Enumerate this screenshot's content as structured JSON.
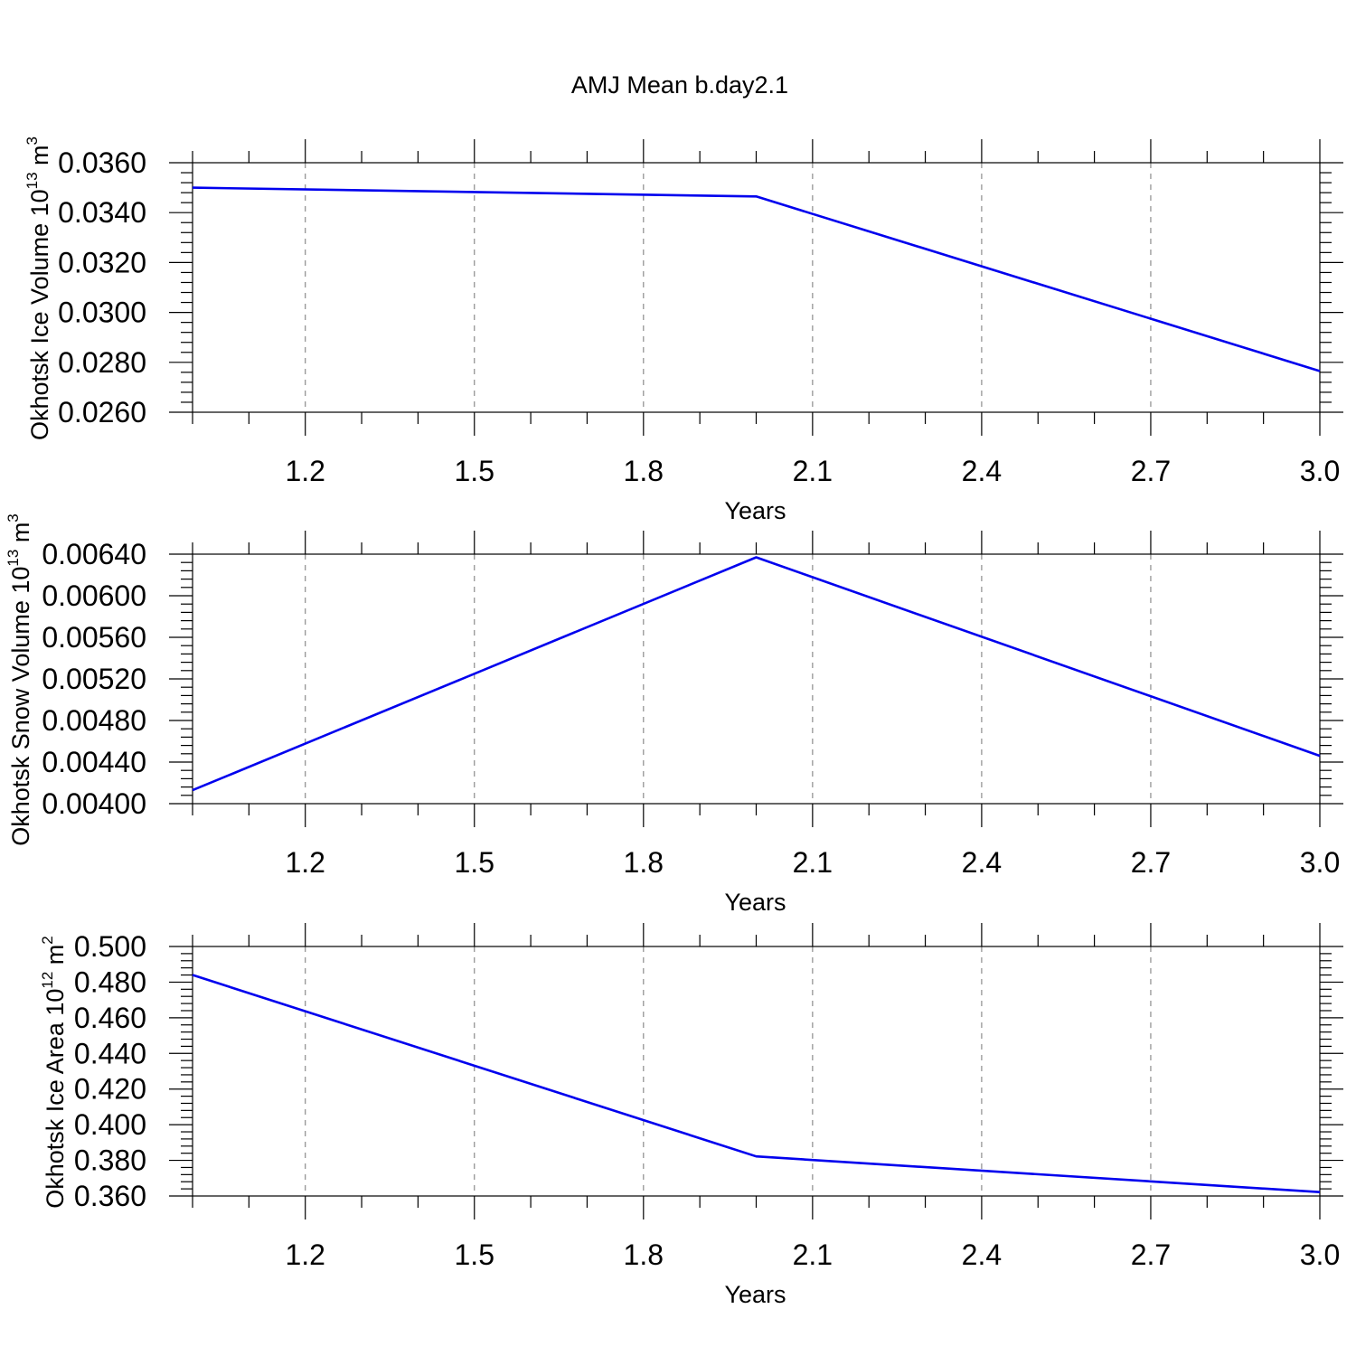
{
  "figure_title": "AMJ Mean b.day2.1",
  "chart_data": [
    {
      "type": "line",
      "title": "AMJ Mean b.day2.1",
      "xlabel": "Years",
      "ylabel": "Okhotsk Ice Volume 10",
      "ylabel_exp": "13",
      "ylabel_unit": " m",
      "ylabel_unit_exp": "3",
      "xlim": [
        1.0,
        3.0
      ],
      "ylim": [
        0.026,
        0.036
      ],
      "xticks": [
        "1.2",
        "1.5",
        "1.8",
        "2.1",
        "2.4",
        "2.7",
        "3.0"
      ],
      "yticks": [
        "0.0260",
        "0.0280",
        "0.0300",
        "0.0320",
        "0.0340",
        "0.0360"
      ],
      "grid": "x-dashed",
      "series": [
        {
          "x": [
            1.0,
            2.0,
            3.0
          ],
          "values": [
            0.035,
            0.03465,
            0.02765
          ],
          "color": "#0000ee"
        }
      ]
    },
    {
      "type": "line",
      "xlabel": "Years",
      "ylabel": "Okhotsk Snow Volume 10",
      "ylabel_exp": "13",
      "ylabel_unit": " m",
      "ylabel_unit_exp": "3",
      "xlim": [
        1.0,
        3.0
      ],
      "ylim": [
        0.004,
        0.0064
      ],
      "xticks": [
        "1.2",
        "1.5",
        "1.8",
        "2.1",
        "2.4",
        "2.7",
        "3.0"
      ],
      "yticks": [
        "0.00400",
        "0.00440",
        "0.00480",
        "0.00520",
        "0.00560",
        "0.00600",
        "0.00640"
      ],
      "grid": "x-dashed",
      "series": [
        {
          "x": [
            1.0,
            2.0,
            3.0
          ],
          "values": [
            0.00413,
            0.00637,
            0.00446
          ],
          "color": "#0000ee"
        }
      ]
    },
    {
      "type": "line",
      "xlabel": "Years",
      "ylabel": "Okhotsk Ice Area 10",
      "ylabel_exp": "12",
      "ylabel_unit": " m",
      "ylabel_unit_exp": "2",
      "xlim": [
        1.0,
        3.0
      ],
      "ylim": [
        0.36,
        0.5
      ],
      "xticks": [
        "1.2",
        "1.5",
        "1.8",
        "2.1",
        "2.4",
        "2.7",
        "3.0"
      ],
      "yticks": [
        "0.360",
        "0.380",
        "0.400",
        "0.420",
        "0.440",
        "0.460",
        "0.480",
        "0.500"
      ],
      "grid": "x-dashed",
      "series": [
        {
          "x": [
            1.0,
            2.0,
            3.0
          ],
          "values": [
            0.484,
            0.3822,
            0.3622
          ],
          "color": "#0000ee"
        }
      ]
    }
  ]
}
